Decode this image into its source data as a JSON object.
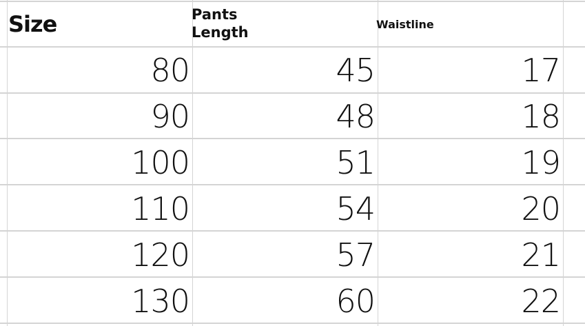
{
  "table": {
    "headers": [
      "Size",
      "Pants\nLength",
      "Waistline"
    ],
    "rows": [
      [
        "80",
        "45",
        "17"
      ],
      [
        "90",
        "48",
        "18"
      ],
      [
        "100",
        "51",
        "19"
      ],
      [
        "110",
        "54",
        "20"
      ],
      [
        "120",
        "57",
        "21"
      ],
      [
        "130",
        "60",
        "22"
      ]
    ]
  },
  "colors": {
    "gridline": "#d4d4d4",
    "text": "#111111"
  }
}
